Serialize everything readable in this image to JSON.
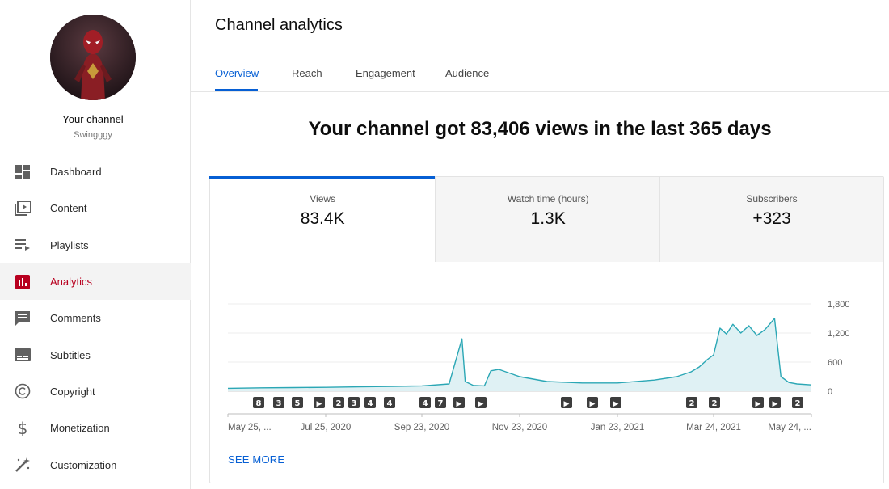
{
  "sidebar": {
    "channel_title": "Your channel",
    "channel_handle": "Swingggy",
    "items": [
      {
        "key": "dashboard",
        "label": "Dashboard",
        "icon": "dashboard-icon"
      },
      {
        "key": "content",
        "label": "Content",
        "icon": "content-icon"
      },
      {
        "key": "playlists",
        "label": "Playlists",
        "icon": "playlists-icon"
      },
      {
        "key": "analytics",
        "label": "Analytics",
        "icon": "analytics-icon",
        "active": true
      },
      {
        "key": "comments",
        "label": "Comments",
        "icon": "comments-icon"
      },
      {
        "key": "subtitles",
        "label": "Subtitles",
        "icon": "subtitles-icon"
      },
      {
        "key": "copyright",
        "label": "Copyright",
        "icon": "copyright-icon"
      },
      {
        "key": "monetization",
        "label": "Monetization",
        "icon": "dollar-icon"
      },
      {
        "key": "customization",
        "label": "Customization",
        "icon": "magic-wand-icon"
      }
    ]
  },
  "header": {
    "title": "Channel analytics",
    "tabs": [
      "Overview",
      "Reach",
      "Engagement",
      "Audience"
    ],
    "active_tab": "Overview"
  },
  "headline": "Your channel got 83,406 views in the last 365 days",
  "metrics": [
    {
      "label": "Views",
      "value": "83.4K"
    },
    {
      "label": "Watch time (hours)",
      "value": "1.3K"
    },
    {
      "label": "Subscribers",
      "value": "+323"
    }
  ],
  "see_more": "SEE MORE",
  "colors": {
    "accent": "#065fd4",
    "active_nav": "#b8001f",
    "line": "#2ba7b5",
    "area": "#dff1f4"
  },
  "chart_data": {
    "type": "area",
    "y_ticks": [
      "1,800",
      "1,200",
      "600",
      "0"
    ],
    "ylim": [
      0,
      1800
    ],
    "x_tick_labels": [
      "May 25, ...",
      "Jul 25, 2020",
      "Sep 23, 2020",
      "Nov 23, 2020",
      "Jan 23, 2021",
      "Mar 24, 2021",
      "May 24, ..."
    ],
    "grid": true,
    "series": [
      {
        "x": [
          "2020-05-25",
          "2020-06-15",
          "2020-07-05",
          "2020-07-25",
          "2020-08-15",
          "2020-09-05",
          "2020-09-23",
          "2020-10-10",
          "2020-10-18",
          "2020-10-20",
          "2020-10-25",
          "2020-11-01",
          "2020-11-05",
          "2020-11-10",
          "2020-11-23",
          "2020-12-10",
          "2021-01-01",
          "2021-01-23",
          "2021-02-15",
          "2021-03-01",
          "2021-03-10",
          "2021-03-15",
          "2021-03-20",
          "2021-03-24",
          "2021-03-28",
          "2021-04-01",
          "2021-04-05",
          "2021-04-10",
          "2021-04-15",
          "2021-04-20",
          "2021-04-25",
          "2021-05-01",
          "2021-05-05",
          "2021-05-10",
          "2021-05-15",
          "2021-05-24"
        ],
        "y": [
          60,
          70,
          75,
          80,
          90,
          100,
          110,
          150,
          1080,
          200,
          120,
          110,
          420,
          450,
          300,
          200,
          170,
          170,
          230,
          300,
          400,
          500,
          650,
          750,
          1300,
          1180,
          1380,
          1200,
          1350,
          1150,
          1270,
          1500,
          300,
          180,
          150,
          130
        ]
      }
    ],
    "markers": [
      "8",
      "3",
      "5",
      "▶",
      "2",
      "3",
      "4",
      "4",
      "4",
      "7",
      "▶",
      "▶",
      "▶",
      "▶",
      "▶",
      "2",
      "2",
      "▶",
      "▶",
      "2"
    ]
  }
}
